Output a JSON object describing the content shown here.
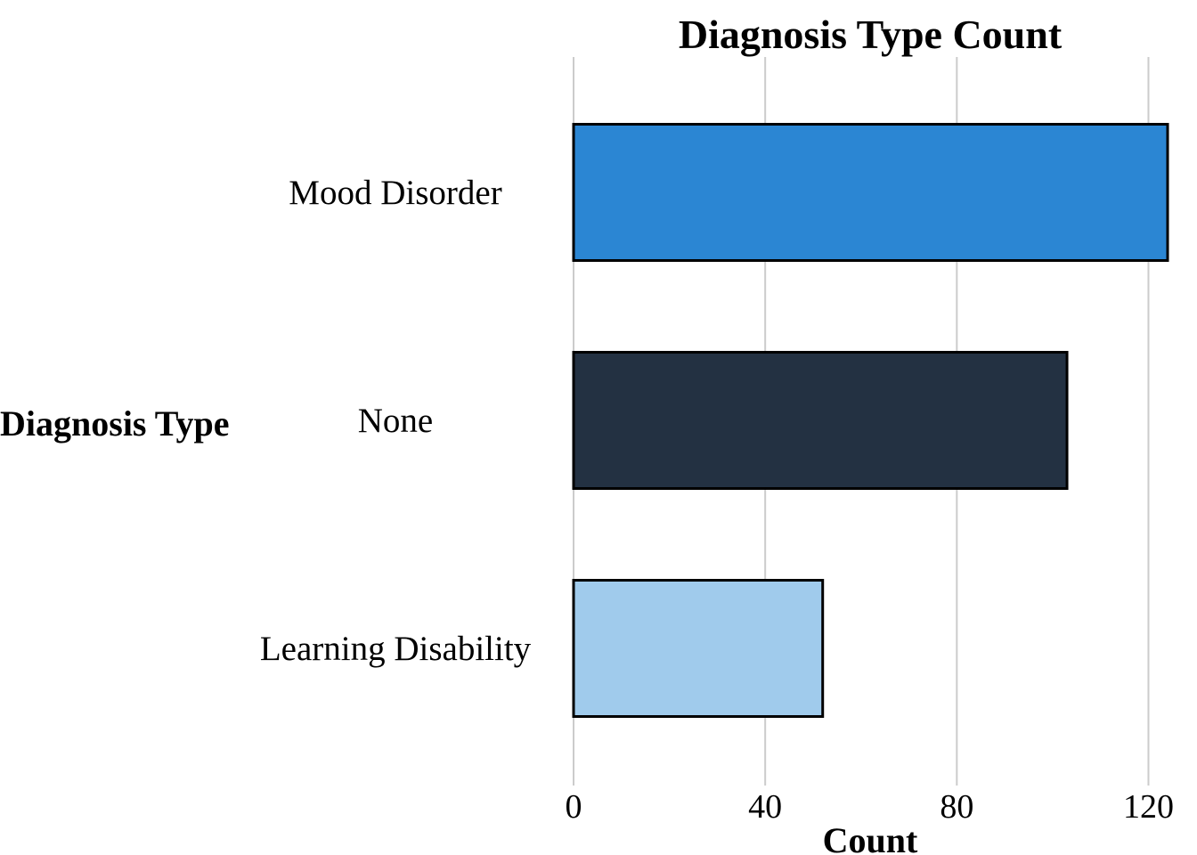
{
  "chart_data": {
    "type": "bar",
    "orientation": "horizontal",
    "title": "Diagnosis Type Count",
    "xlabel": "Count",
    "ylabel": "Diagnosis Type",
    "categories": [
      "Mood Disorder",
      "None",
      "Learning Disability"
    ],
    "values": [
      124,
      103,
      52
    ],
    "colors": [
      "#2b86d3",
      "#233142",
      "#a0cbec"
    ],
    "xlim": [
      0,
      124
    ],
    "xticks": [
      0,
      40,
      80,
      120
    ],
    "grid": "vertical",
    "legend": "none"
  }
}
